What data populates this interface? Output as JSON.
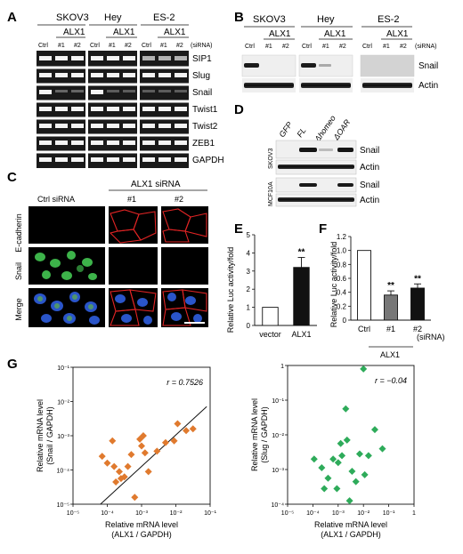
{
  "figure": {
    "panel_labels": [
      "A",
      "B",
      "C",
      "D",
      "E",
      "F",
      "G"
    ],
    "A": {
      "groups": [
        {
          "name": "SKOV3",
          "subgroup": "ALX1",
          "lanes": [
            "Ctrl",
            "#1",
            "#2"
          ]
        },
        {
          "name": "Hey",
          "subgroup": "ALX1",
          "lanes": [
            "Ctrl",
            "#1",
            "#2"
          ]
        },
        {
          "name": "ES-2",
          "subgroup": "ALX1",
          "lanes": [
            "Ctrl",
            "#1",
            "#2"
          ]
        }
      ],
      "unit_label": "(siRNA)",
      "rows": [
        "SIP1",
        "Slug",
        "Snail",
        "Twist1",
        "Twist2",
        "ZEB1",
        "GAPDH"
      ]
    },
    "B": {
      "groups": [
        {
          "name": "SKOV3",
          "subgroup": "ALX1",
          "lanes": [
            "Ctrl",
            "#1",
            "#2"
          ]
        },
        {
          "name": "Hey",
          "subgroup": "ALX1",
          "lanes": [
            "Ctrl",
            "#1",
            "#2"
          ]
        },
        {
          "name": "ES-2",
          "subgroup": "ALX1",
          "lanes": [
            "Ctrl",
            "#1",
            "#2"
          ]
        }
      ],
      "unit_label": "(siRNA)",
      "rows": [
        "Snail",
        "Actin"
      ]
    },
    "C": {
      "header": "ALX1 siRNA",
      "columns": [
        "Ctrl siRNA",
        "#1",
        "#2"
      ],
      "rows": [
        "E-cadherin",
        "Snail",
        "Merge"
      ]
    },
    "D": {
      "lanes": [
        "GFP",
        "FL",
        "Δhomeo",
        "ΔOAR"
      ],
      "cell_lines": [
        "SKOV3",
        "MCF10A"
      ],
      "rows": [
        "Snail",
        "Actin",
        "Snail",
        "Actin"
      ]
    }
  },
  "chart_data": [
    {
      "panel": "E",
      "type": "bar",
      "categories": [
        "vector",
        "ALX1"
      ],
      "values": [
        1.0,
        3.2
      ],
      "errors": [
        0,
        0.55
      ],
      "ylabel": "Relative Luc activity/fold",
      "ylim": [
        0,
        5
      ],
      "yticks": [
        "0",
        "1",
        "2",
        "3",
        "4",
        "5"
      ],
      "annotations": [
        "**"
      ],
      "bar_colors": [
        "#ffffff",
        "#111111"
      ]
    },
    {
      "panel": "F",
      "type": "bar",
      "categories": [
        "Ctrl",
        "#1",
        "#2"
      ],
      "values": [
        1.0,
        0.36,
        0.46
      ],
      "errors": [
        0,
        0.06,
        0.06
      ],
      "ylabel": "Relative Luc activity/fold",
      "ylim": [
        0,
        1.2
      ],
      "yticks": [
        "0",
        "0.2",
        "0.4",
        "0.6",
        "0.8",
        "1.0",
        "1.2"
      ],
      "group_label": "ALX1",
      "unit_label": "(siRNA)",
      "annotations": [
        "**",
        "**"
      ],
      "bar_colors": [
        "#ffffff",
        "#777777",
        "#111111"
      ]
    },
    {
      "panel": "G",
      "type": "scatter",
      "scale": "log",
      "xlabel": "Relative mRNA level\n(ALX1 / GAPDH)",
      "ylabel": "Relative mRNA level\n(Snail / GAPDH)",
      "xticks": [
        "10⁻⁵",
        "10⁻⁴",
        "10⁻³",
        "10⁻²",
        "10⁻¹"
      ],
      "yticks": [
        "10⁻⁵",
        "10⁻⁴",
        "10⁻³",
        "10⁻²",
        "10⁻¹"
      ],
      "xlim_exp": [
        -5,
        -1
      ],
      "ylim_exp": [
        -5,
        -1
      ],
      "annotation": "r = 0.7526",
      "marker_color": "#e07a2e",
      "fit_line_exp": [
        [
          -4.2,
          -5.0
        ],
        [
          -1.1,
          -2.15
        ]
      ],
      "points_exp": [
        [
          -4.15,
          -3.6
        ],
        [
          -4.0,
          -3.8
        ],
        [
          -3.85,
          -3.15
        ],
        [
          -3.8,
          -3.9
        ],
        [
          -3.75,
          -4.35
        ],
        [
          -3.65,
          -4.05
        ],
        [
          -3.6,
          -4.25
        ],
        [
          -3.5,
          -4.2
        ],
        [
          -3.4,
          -3.9
        ],
        [
          -3.3,
          -3.55
        ],
        [
          -3.2,
          -4.8
        ],
        [
          -3.05,
          -3.1
        ],
        [
          -3.0,
          -3.3
        ],
        [
          -2.95,
          -3.0
        ],
        [
          -2.9,
          -3.5
        ],
        [
          -2.8,
          -4.05
        ],
        [
          -2.55,
          -3.45
        ],
        [
          -2.3,
          -3.2
        ],
        [
          -2.05,
          -3.15
        ],
        [
          -1.95,
          -2.65
        ],
        [
          -1.7,
          -2.85
        ],
        [
          -1.5,
          -2.8
        ]
      ]
    },
    {
      "panel": "G",
      "type": "scatter",
      "scale": "log",
      "xlabel": "Relative mRNA level\n(ALX1 / GAPDH)",
      "ylabel": "Relative mRNA level\n(Slug / GAPDH)",
      "xticks": [
        "10⁻⁵",
        "10⁻⁴",
        "10⁻³",
        "10⁻²",
        "10⁻¹",
        "1"
      ],
      "yticks": [
        "10⁻⁴",
        "10⁻³",
        "10⁻²",
        "10⁻¹",
        "1"
      ],
      "xlim_exp": [
        -5,
        0
      ],
      "ylim_exp": [
        -4,
        0
      ],
      "annotation": "r = −0.04",
      "marker_color": "#2eab5a",
      "points_exp": [
        [
          -3.55,
          -3.55
        ],
        [
          -3.95,
          -2.7
        ],
        [
          -3.65,
          -2.95
        ],
        [
          -3.4,
          -3.25
        ],
        [
          -3.2,
          -2.7
        ],
        [
          -3.0,
          -2.8
        ],
        [
          -3.05,
          -3.55
        ],
        [
          -2.9,
          -2.25
        ],
        [
          -2.85,
          -2.6
        ],
        [
          -2.7,
          -1.25
        ],
        [
          -2.65,
          -2.15
        ],
        [
          -2.55,
          -3.9
        ],
        [
          -2.45,
          -3.05
        ],
        [
          -2.3,
          -3.35
        ],
        [
          -2.15,
          -2.55
        ],
        [
          -1.95,
          -3.15
        ],
        [
          -1.8,
          -2.6
        ],
        [
          -1.55,
          -1.85
        ],
        [
          -1.25,
          -2.4
        ],
        [
          -2.0,
          -0.1
        ]
      ]
    }
  ]
}
